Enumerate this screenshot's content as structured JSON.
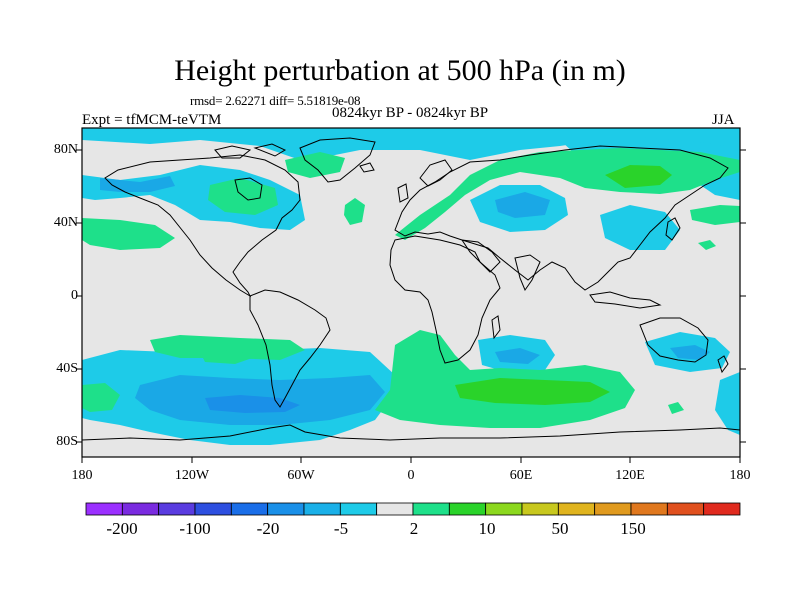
{
  "title": "Height perturbation at 500 hPa (in m)",
  "stats": "rmsd= 2.62271 diff= 5.51819e-08",
  "experiment": "Expt = tfMCM-teVTM",
  "period": "0824kyr BP - 0824kyr BP",
  "season": "JJA",
  "map": {
    "projection": "cylindrical equidistant",
    "lon_range": [
      -180,
      180
    ],
    "lat_range": [
      -90,
      90
    ],
    "lat_labels": [
      "80N",
      "40N",
      "0",
      "40S",
      "80S"
    ],
    "lon_labels": [
      "180",
      "120W",
      "60W",
      "0",
      "60E",
      "120E",
      "180"
    ],
    "background_color": "#e6e6e6",
    "coastline_color": "#000000"
  },
  "colorbar": {
    "labels": [
      "-200",
      "-100",
      "-20",
      "-5",
      "2",
      "10",
      "50",
      "150"
    ],
    "colors": [
      "#9b30ff",
      "#7a2be0",
      "#5a3ce0",
      "#2d4fe0",
      "#1a6ee8",
      "#1a90e8",
      "#1ab0e8",
      "#1ecbe8",
      "#e6e6e6",
      "#1ee08a",
      "#2ad32a",
      "#8cd81e",
      "#c8c81e",
      "#e0b41e",
      "#e09a1e",
      "#e0781e",
      "#e0501e",
      "#e02a1e"
    ]
  }
}
